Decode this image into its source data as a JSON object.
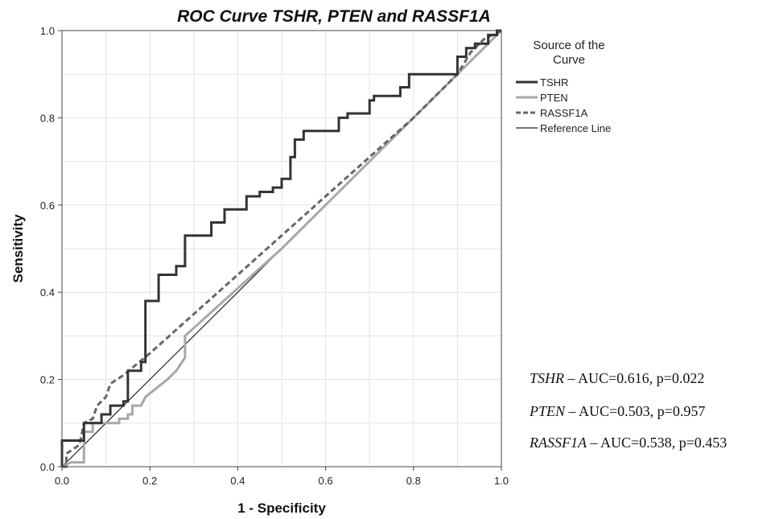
{
  "chart_data": {
    "type": "line",
    "title": "ROC Curve TSHR, PTEN and RASSF1A",
    "xlabel": "1 - Specificity",
    "ylabel": "Sensitivity",
    "xlim": [
      0,
      1
    ],
    "ylim": [
      0,
      1
    ],
    "xticks": [
      "0.0",
      "0.2",
      "0.4",
      "0.6",
      "0.8",
      "1.0"
    ],
    "yticks": [
      "0.0",
      "0.2",
      "0.4",
      "0.6",
      "0.8",
      "1.0"
    ],
    "grid": true,
    "legend": {
      "title": "Source of the Curve",
      "placement": "right",
      "entries": [
        "TSHR",
        "PTEN",
        "RASSF1A",
        "Reference Line"
      ]
    },
    "series": [
      {
        "name": "TSHR",
        "color": "#333333",
        "style": "solid-thick",
        "points": [
          [
            0,
            0
          ],
          [
            0,
            0.06
          ],
          [
            0.05,
            0.06
          ],
          [
            0.05,
            0.1
          ],
          [
            0.09,
            0.1
          ],
          [
            0.09,
            0.12
          ],
          [
            0.11,
            0.12
          ],
          [
            0.11,
            0.14
          ],
          [
            0.14,
            0.14
          ],
          [
            0.14,
            0.15
          ],
          [
            0.15,
            0.15
          ],
          [
            0.15,
            0.22
          ],
          [
            0.18,
            0.22
          ],
          [
            0.18,
            0.24
          ],
          [
            0.19,
            0.24
          ],
          [
            0.19,
            0.38
          ],
          [
            0.22,
            0.38
          ],
          [
            0.22,
            0.44
          ],
          [
            0.26,
            0.44
          ],
          [
            0.26,
            0.46
          ],
          [
            0.28,
            0.46
          ],
          [
            0.28,
            0.53
          ],
          [
            0.34,
            0.53
          ],
          [
            0.34,
            0.56
          ],
          [
            0.37,
            0.56
          ],
          [
            0.37,
            0.59
          ],
          [
            0.42,
            0.59
          ],
          [
            0.42,
            0.62
          ],
          [
            0.45,
            0.62
          ],
          [
            0.45,
            0.63
          ],
          [
            0.48,
            0.63
          ],
          [
            0.48,
            0.64
          ],
          [
            0.5,
            0.64
          ],
          [
            0.5,
            0.66
          ],
          [
            0.52,
            0.66
          ],
          [
            0.52,
            0.71
          ],
          [
            0.53,
            0.71
          ],
          [
            0.53,
            0.75
          ],
          [
            0.55,
            0.75
          ],
          [
            0.55,
            0.77
          ],
          [
            0.63,
            0.77
          ],
          [
            0.63,
            0.8
          ],
          [
            0.65,
            0.8
          ],
          [
            0.65,
            0.81
          ],
          [
            0.7,
            0.81
          ],
          [
            0.7,
            0.84
          ],
          [
            0.71,
            0.84
          ],
          [
            0.71,
            0.85
          ],
          [
            0.77,
            0.85
          ],
          [
            0.77,
            0.87
          ],
          [
            0.79,
            0.87
          ],
          [
            0.79,
            0.9
          ],
          [
            0.9,
            0.9
          ],
          [
            0.9,
            0.94
          ],
          [
            0.92,
            0.94
          ],
          [
            0.92,
            0.96
          ],
          [
            0.94,
            0.96
          ],
          [
            0.94,
            0.97
          ],
          [
            0.97,
            0.97
          ],
          [
            0.97,
            0.99
          ],
          [
            0.99,
            0.99
          ],
          [
            0.99,
            1
          ],
          [
            1,
            1
          ]
        ]
      },
      {
        "name": "PTEN",
        "color": "#a8a8a8",
        "style": "solid",
        "points": [
          [
            0,
            0
          ],
          [
            0.02,
            0.01
          ],
          [
            0.05,
            0.01
          ],
          [
            0.05,
            0.08
          ],
          [
            0.07,
            0.08
          ],
          [
            0.07,
            0.1
          ],
          [
            0.13,
            0.1
          ],
          [
            0.13,
            0.11
          ],
          [
            0.15,
            0.11
          ],
          [
            0.15,
            0.12
          ],
          [
            0.16,
            0.12
          ],
          [
            0.16,
            0.14
          ],
          [
            0.18,
            0.14
          ],
          [
            0.19,
            0.16
          ],
          [
            0.24,
            0.2
          ],
          [
            0.26,
            0.22
          ],
          [
            0.28,
            0.25
          ],
          [
            0.28,
            0.3
          ],
          [
            0.5,
            0.5
          ],
          [
            0.7,
            0.7
          ],
          [
            0.9,
            0.9
          ],
          [
            1,
            1
          ]
        ]
      },
      {
        "name": "RASSF1A",
        "color": "#666666",
        "style": "dashed",
        "points": [
          [
            0,
            0
          ],
          [
            0.01,
            0
          ],
          [
            0.01,
            0.03
          ],
          [
            0.04,
            0.05
          ],
          [
            0.05,
            0.1
          ],
          [
            0.07,
            0.11
          ],
          [
            0.08,
            0.14
          ],
          [
            0.1,
            0.16
          ],
          [
            0.11,
            0.19
          ],
          [
            0.14,
            0.21
          ],
          [
            0.2,
            0.26
          ],
          [
            0.5,
            0.53
          ],
          [
            0.8,
            0.8
          ],
          [
            0.9,
            0.9
          ],
          [
            0.93,
            0.95
          ],
          [
            0.96,
            0.98
          ],
          [
            1,
            1
          ]
        ]
      },
      {
        "name": "Reference Line",
        "color": "#222222",
        "style": "thin",
        "points": [
          [
            0,
            0
          ],
          [
            1,
            1
          ]
        ]
      }
    ]
  },
  "annotations": [
    {
      "gene": "TSHR",
      "text": " – AUC=0.616, p=0.022"
    },
    {
      "gene": "PTEN",
      "text": " – AUC=0.503, p=0.957"
    },
    {
      "gene": "RASSF1A",
      "text": " – AUC=0.538, p=0.453"
    }
  ]
}
